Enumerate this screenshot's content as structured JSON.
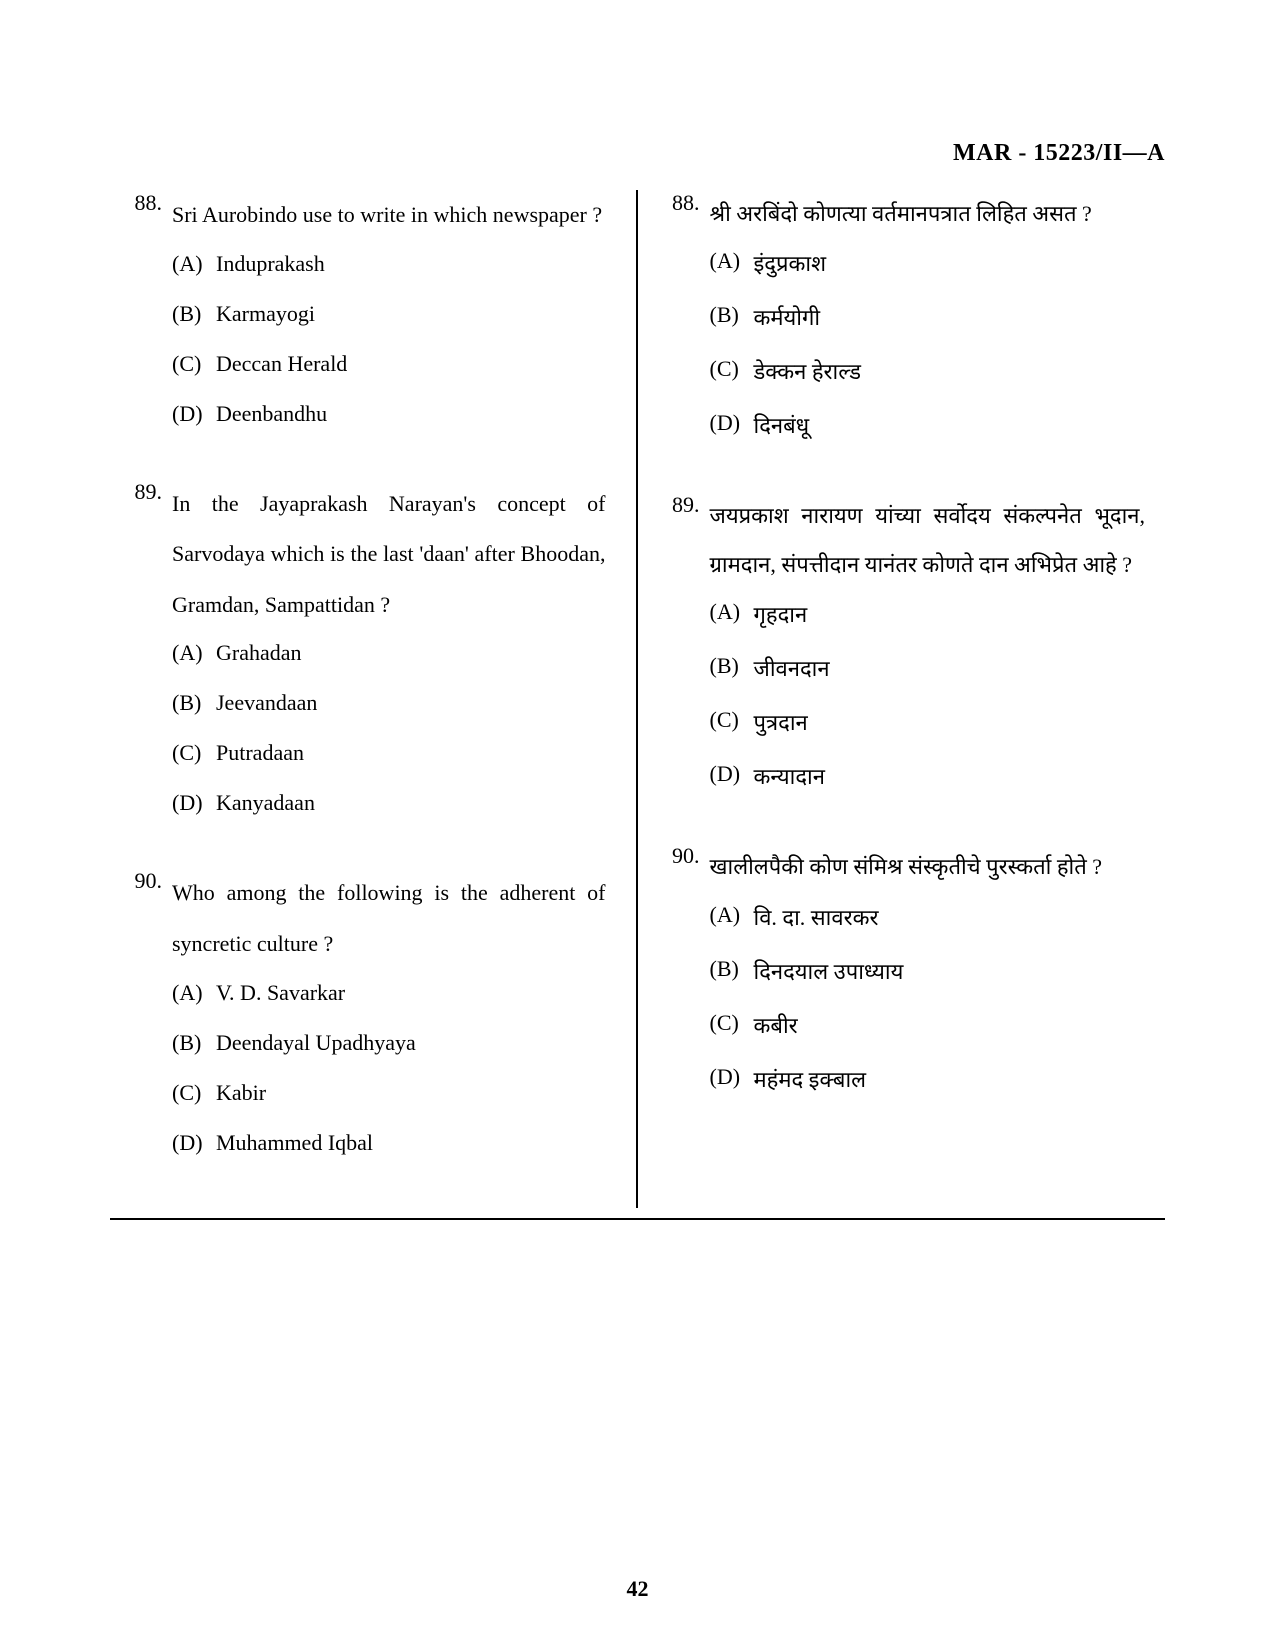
{
  "header": "MAR - 15223/II—A",
  "page_number": "42",
  "left": {
    "questions": [
      {
        "num": "88.",
        "text": "Sri Aurobindo use to write in which newspaper ?",
        "options": [
          {
            "label": "(A)",
            "text": "Induprakash"
          },
          {
            "label": "(B)",
            "text": "Karmayogi"
          },
          {
            "label": "(C)",
            "text": "Deccan Herald"
          },
          {
            "label": "(D)",
            "text": "Deenbandhu"
          }
        ]
      },
      {
        "num": "89.",
        "text": "In the Jayaprakash Narayan's concept of Sarvodaya which is the last 'daan' after Bhoodan, Gramdan, Sampattidan ?",
        "options": [
          {
            "label": "(A)",
            "text": "Grahadan"
          },
          {
            "label": "(B)",
            "text": "Jeevandaan"
          },
          {
            "label": "(C)",
            "text": "Putradaan"
          },
          {
            "label": "(D)",
            "text": "Kanyadaan"
          }
        ]
      },
      {
        "num": "90.",
        "text": "Who among the following is the adherent of syncretic culture ?",
        "options": [
          {
            "label": "(A)",
            "text": "V. D. Savarkar"
          },
          {
            "label": "(B)",
            "text": "Deendayal Upadhyaya"
          },
          {
            "label": "(C)",
            "text": "Kabir"
          },
          {
            "label": "(D)",
            "text": "Muhammed Iqbal"
          }
        ]
      }
    ]
  },
  "right": {
    "questions": [
      {
        "num": "88.",
        "text": "श्री अरबिंदो कोणत्या वर्तमानपत्रात लिहित असत ?",
        "options": [
          {
            "label": "(A)",
            "text": "इंदुप्रकाश"
          },
          {
            "label": "(B)",
            "text": "कर्मयोगी"
          },
          {
            "label": "(C)",
            "text": "डेक्कन हेराल्ड"
          },
          {
            "label": "(D)",
            "text": "दिनबंधू"
          }
        ]
      },
      {
        "num": "89.",
        "text": "जयप्रकाश नारायण यांच्या सर्वोदय संकल्पनेत भूदान, ग्रामदान, संपत्तीदान यानंतर कोणते दान अभिप्रेत आहे ?",
        "options": [
          {
            "label": "(A)",
            "text": "गृहदान"
          },
          {
            "label": "(B)",
            "text": "जीवनदान"
          },
          {
            "label": "(C)",
            "text": "पुत्रदान"
          },
          {
            "label": "(D)",
            "text": "कन्यादान"
          }
        ]
      },
      {
        "num": "90.",
        "text": "खालीलपैकी कोण संमिश्र संस्कृतीचे पुरस्कर्ता होते ?",
        "options": [
          {
            "label": "(A)",
            "text": "वि. दा. सावरकर"
          },
          {
            "label": "(B)",
            "text": "दिनदयाल उपाध्याय"
          },
          {
            "label": "(C)",
            "text": "कबीर"
          },
          {
            "label": "(D)",
            "text": "महंमद इक्बाल"
          }
        ]
      }
    ]
  }
}
